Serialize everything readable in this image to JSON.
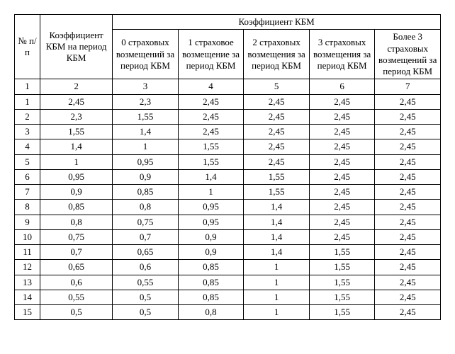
{
  "table": {
    "header": {
      "row_num": "№ п/п",
      "coef_period": "Коэффициент КБМ на период КБМ",
      "coef_group": "Коэффициент КБМ",
      "cols": [
        "0 страховых возмещений за период КБМ",
        "1 страховое возмещение за период КБМ",
        "2 страховых возмещения за период КБМ",
        "3 страховых возмещения за период КБМ",
        "Более 3 страховых возмещений за период КБМ"
      ]
    },
    "colnums": [
      "1",
      "2",
      "3",
      "4",
      "5",
      "6",
      "7"
    ],
    "rows": [
      [
        "1",
        "2,45",
        "2,3",
        "2,45",
        "2,45",
        "2,45",
        "2,45"
      ],
      [
        "2",
        "2,3",
        "1,55",
        "2,45",
        "2,45",
        "2,45",
        "2,45"
      ],
      [
        "3",
        "1,55",
        "1,4",
        "2,45",
        "2,45",
        "2,45",
        "2,45"
      ],
      [
        "4",
        "1,4",
        "1",
        "1,55",
        "2,45",
        "2,45",
        "2,45"
      ],
      [
        "5",
        "1",
        "0,95",
        "1,55",
        "2,45",
        "2,45",
        "2,45"
      ],
      [
        "6",
        "0,95",
        "0,9",
        "1,4",
        "1,55",
        "2,45",
        "2,45"
      ],
      [
        "7",
        "0,9",
        "0,85",
        "1",
        "1,55",
        "2,45",
        "2,45"
      ],
      [
        "8",
        "0,85",
        "0,8",
        "0,95",
        "1,4",
        "2,45",
        "2,45"
      ],
      [
        "9",
        "0,8",
        "0,75",
        "0,95",
        "1,4",
        "2,45",
        "2,45"
      ],
      [
        "10",
        "0,75",
        "0,7",
        "0,9",
        "1,4",
        "2,45",
        "2,45"
      ],
      [
        "11",
        "0,7",
        "0,65",
        "0,9",
        "1,4",
        "1,55",
        "2,45"
      ],
      [
        "12",
        "0,65",
        "0,6",
        "0,85",
        "1",
        "1,55",
        "2,45"
      ],
      [
        "13",
        "0,6",
        "0,55",
        "0,85",
        "1",
        "1,55",
        "2,45"
      ],
      [
        "14",
        "0,55",
        "0,5",
        "0,85",
        "1",
        "1,55",
        "2,45"
      ],
      [
        "15",
        "0,5",
        "0,5",
        "0,8",
        "1",
        "1,55",
        "2,45"
      ]
    ],
    "style": {
      "border_color": "#000000",
      "background_color": "#ffffff",
      "font_family": "Times New Roman",
      "header_fontsize": 13,
      "body_fontsize": 13,
      "text_align": "center"
    }
  }
}
